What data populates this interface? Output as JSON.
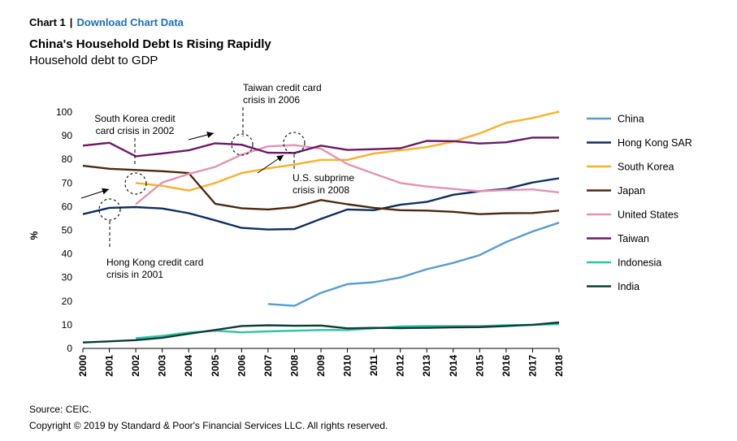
{
  "header": {
    "chart_label": "Chart 1",
    "separator": "|",
    "download_link": "Download Chart Data"
  },
  "footer": {
    "source": "Source: CEIC.",
    "copyright": "Copyright © 2019 by Standard & Poor's Financial Services LLC. All rights reserved."
  },
  "colors": {
    "China": "#5b9ccc",
    "Hong Kong SAR": "#0f2e5e",
    "South Korea": "#f7b12b",
    "Japan": "#4a2a13",
    "United States": "#e294b2",
    "Taiwan": "#6a1a66",
    "Indonesia": "#2ec4a4",
    "India": "#0c3c35"
  },
  "chart_data": {
    "type": "line",
    "title": "China's Household Debt Is Rising Rapidly",
    "subtitle": "Household debt to GDP",
    "ylabel": "%",
    "xlabel": "",
    "ylim": [
      0,
      100
    ],
    "yticks": [
      0,
      10,
      20,
      30,
      40,
      50,
      60,
      70,
      80,
      90,
      100
    ],
    "x": [
      "2000",
      "2001",
      "2002",
      "2003",
      "2004",
      "2005",
      "2006",
      "2007",
      "2008",
      "2009",
      "2010",
      "2011",
      "2012",
      "2013",
      "2014",
      "2015",
      "2016",
      "2017",
      "2018"
    ],
    "legend_position": "right",
    "series": [
      {
        "name": "China",
        "values": [
          null,
          null,
          null,
          null,
          null,
          null,
          null,
          18.8,
          18.0,
          23.5,
          27.2,
          28.0,
          30.0,
          33.5,
          36.2,
          39.5,
          45.0,
          49.5,
          53.2
        ]
      },
      {
        "name": "Hong Kong SAR",
        "values": [
          56.8,
          59.5,
          59.8,
          59.2,
          57.2,
          54.2,
          51.0,
          50.3,
          50.5,
          54.8,
          58.8,
          58.5,
          60.8,
          62.0,
          65.0,
          66.5,
          67.5,
          70.2,
          72.0
        ]
      },
      {
        "name": "South Korea",
        "values": [
          null,
          null,
          70.0,
          68.8,
          66.8,
          70.0,
          74.2,
          76.2,
          77.8,
          79.8,
          79.8,
          82.5,
          83.8,
          85.2,
          87.5,
          91.0,
          95.5,
          97.5,
          100.2
        ]
      },
      {
        "name": "Japan",
        "values": [
          77.3,
          76.0,
          75.5,
          75.0,
          74.2,
          61.2,
          59.3,
          58.8,
          59.8,
          62.8,
          61.0,
          59.5,
          58.5,
          58.3,
          57.8,
          56.8,
          57.2,
          57.3,
          58.3
        ]
      },
      {
        "name": "United States",
        "values": [
          null,
          null,
          61.0,
          70.2,
          73.8,
          76.8,
          82.0,
          85.5,
          86.0,
          84.5,
          78.0,
          74.0,
          70.0,
          68.5,
          67.5,
          66.5,
          67.0,
          67.3,
          66.0
        ]
      },
      {
        "name": "Taiwan",
        "values": [
          85.8,
          87.0,
          81.3,
          82.5,
          83.8,
          86.8,
          86.2,
          82.8,
          82.7,
          85.8,
          84.0,
          84.3,
          84.7,
          87.8,
          87.7,
          86.7,
          87.2,
          89.2,
          89.2
        ]
      },
      {
        "name": "Indonesia",
        "values": [
          null,
          null,
          4.3,
          5.3,
          6.7,
          7.5,
          6.8,
          7.2,
          7.5,
          7.8,
          7.8,
          8.5,
          9.3,
          9.5,
          9.5,
          9.5,
          9.8,
          10.0,
          10.3
        ]
      },
      {
        "name": "India",
        "values": [
          2.5,
          3.0,
          3.5,
          4.5,
          6.2,
          7.8,
          9.5,
          9.8,
          9.6,
          9.7,
          8.5,
          8.7,
          8.6,
          8.7,
          8.9,
          9.0,
          9.5,
          10.0,
          11.0
        ]
      }
    ],
    "annotations": [
      {
        "id": "korea",
        "lines": [
          "South Korea credit",
          "card crisis in 2002"
        ]
      },
      {
        "id": "taiwan",
        "lines": [
          "Taiwan credit card",
          "crisis in 2006"
        ]
      },
      {
        "id": "us",
        "lines": [
          "U.S. subprime",
          "crisis in 2008"
        ]
      },
      {
        "id": "hk",
        "lines": [
          "Hong Kong credit card",
          "crisis in 2001"
        ]
      }
    ]
  }
}
